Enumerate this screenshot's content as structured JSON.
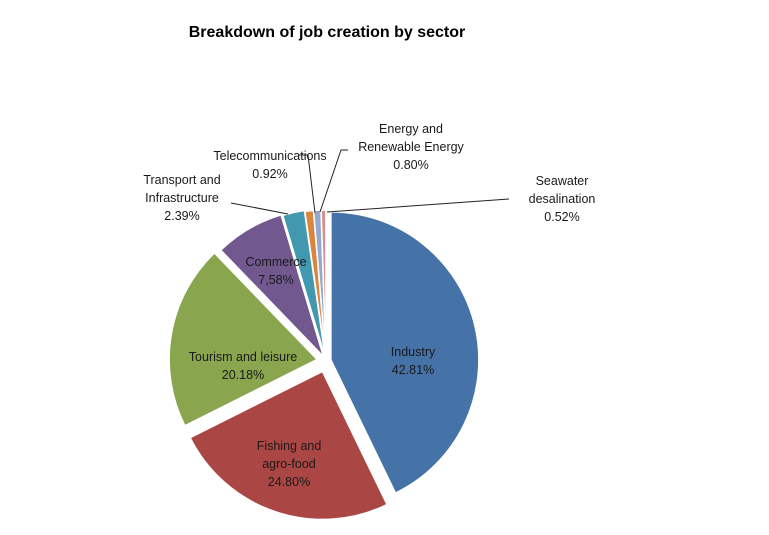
{
  "chart_data": {
    "type": "pie",
    "title": "Breakdown of job creation by sector",
    "slices": [
      {
        "name": "Industry",
        "value": 42.81,
        "label_lines": [
          "Industry",
          "42.81%"
        ],
        "color": "#4572A7"
      },
      {
        "name": "Fishing and agro-food",
        "value": 24.8,
        "label_lines": [
          "Fishing and",
          "agro-food",
          "24.80%"
        ],
        "color": "#AA4643"
      },
      {
        "name": "Tourism and leisure",
        "value": 20.18,
        "label_lines": [
          "Tourism and leisure",
          "20.18%"
        ],
        "color": "#89A54E"
      },
      {
        "name": "Commerce",
        "value": 7.58,
        "label_lines": [
          "Commerce",
          "7,58%"
        ],
        "color": "#71588F"
      },
      {
        "name": "Transport and Infrastructure",
        "value": 2.39,
        "label_lines": [
          "Transport and",
          "Infrastructure",
          "2.39%"
        ],
        "color": "#4198AF"
      },
      {
        "name": "Telecommunications",
        "value": 0.92,
        "label_lines": [
          "Telecommunications",
          "0.92%"
        ],
        "color": "#DB843D"
      },
      {
        "name": "Energy and Renewable Energy",
        "value": 0.8,
        "label_lines": [
          "Energy and",
          "Renewable Energy",
          "0.80%"
        ],
        "color": "#93A9CF"
      },
      {
        "name": "Seawater desalination",
        "value": 0.52,
        "label_lines": [
          "Seawater",
          "desalination",
          "0.52%"
        ],
        "color": "#D19392"
      }
    ],
    "start_angle": "12 o'clock",
    "direction": "clockwise",
    "legend": "none",
    "exploded": true
  }
}
